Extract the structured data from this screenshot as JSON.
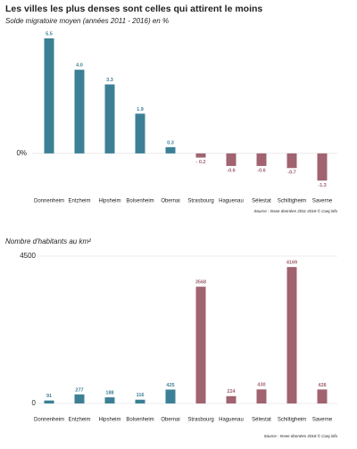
{
  "title": "Les villes les plus denses sont celles qui attirent le moins",
  "chart_data": [
    {
      "type": "bar",
      "title": "Solde migratoire moyen (années 2011 - 2016) en %",
      "categories": [
        "Donnenheim",
        "Entzheim",
        "Hipsheim",
        "Bolsenheim",
        "Obernai",
        "Strasbourg",
        "Haguenau",
        "Sélestat",
        "Schiltigheim",
        "Saverne"
      ],
      "values": [
        5.5,
        4.0,
        3.3,
        1.9,
        0.3,
        -0.2,
        -0.6,
        -0.6,
        -0.7,
        -1.3
      ],
      "value_labels": [
        "5.5",
        "4.0",
        "3.3",
        "1.9",
        "0.3",
        "- 0.2",
        "-0.6",
        "-0.6",
        "-0.7",
        "-1.3"
      ],
      "colors": [
        "#3d8096",
        "#3d8096",
        "#3d8096",
        "#3d8096",
        "#3d8096",
        "#a0636f",
        "#a0636f",
        "#a0636f",
        "#a0636f",
        "#a0636f"
      ],
      "ylim": [
        -1.5,
        5.7
      ],
      "yticks": [
        {
          "value": 0,
          "label": "0%"
        }
      ],
      "source": "Source : Insee données 2011-2016 © Cuej.info"
    },
    {
      "type": "bar",
      "title": "Nombre d'habitants au km²",
      "categories": [
        "Donnenheim",
        "Entzheim",
        "Hipsheim",
        "Bolsenheim",
        "Obernai",
        "Strasbourg",
        "Haguenau",
        "Sélestat",
        "Schiltigheim",
        "Saverne"
      ],
      "values": [
        91,
        277,
        188,
        116,
        425,
        3568,
        224,
        430,
        4169,
        428
      ],
      "colors": [
        "#3d8096",
        "#3d8096",
        "#3d8096",
        "#3d8096",
        "#3d8096",
        "#a0636f",
        "#a0636f",
        "#a0636f",
        "#a0636f",
        "#a0636f"
      ],
      "ylim": [
        0,
        4500
      ],
      "yticks": [
        0,
        4500
      ],
      "source": "Source : Insee données 2016 © Cuej.info"
    }
  ]
}
